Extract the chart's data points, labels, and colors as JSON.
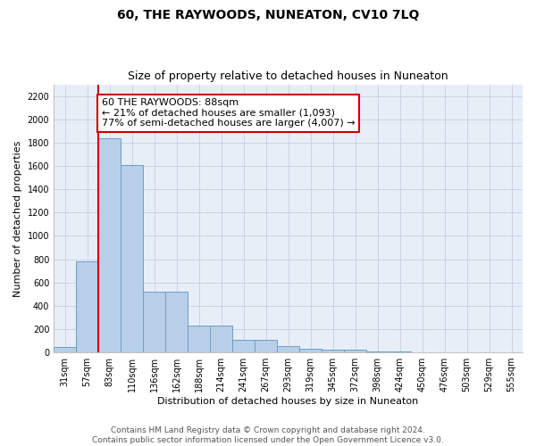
{
  "title": "60, THE RAYWOODS, NUNEATON, CV10 7LQ",
  "subtitle": "Size of property relative to detached houses in Nuneaton",
  "xlabel": "Distribution of detached houses by size in Nuneaton",
  "ylabel": "Number of detached properties",
  "bin_labels": [
    "31sqm",
    "57sqm",
    "83sqm",
    "110sqm",
    "136sqm",
    "162sqm",
    "188sqm",
    "214sqm",
    "241sqm",
    "267sqm",
    "293sqm",
    "319sqm",
    "345sqm",
    "372sqm",
    "398sqm",
    "424sqm",
    "450sqm",
    "476sqm",
    "503sqm",
    "529sqm",
    "555sqm"
  ],
  "bar_heights": [
    50,
    780,
    1840,
    1610,
    520,
    520,
    230,
    230,
    110,
    110,
    55,
    35,
    20,
    20,
    10,
    5,
    2,
    1,
    0,
    0,
    0
  ],
  "bar_color": "#b8cfe8",
  "bar_edge_color": "#6a9fc8",
  "annotation_text": "60 THE RAYWOODS: 88sqm\n← 21% of detached houses are smaller (1,093)\n77% of semi-detached houses are larger (4,007) →",
  "annotation_box_color": "#ffffff",
  "annotation_box_edge_color": "#cc0000",
  "red_line_color": "#cc0000",
  "ylim": [
    0,
    2300
  ],
  "yticks": [
    0,
    200,
    400,
    600,
    800,
    1000,
    1200,
    1400,
    1600,
    1800,
    2000,
    2200
  ],
  "footer_line1": "Contains HM Land Registry data © Crown copyright and database right 2024.",
  "footer_line2": "Contains public sector information licensed under the Open Government Licence v3.0.",
  "background_color": "#ffffff",
  "plot_bg_color": "#e8eef8",
  "grid_color": "#c8d4e4",
  "title_fontsize": 10,
  "subtitle_fontsize": 9,
  "axis_label_fontsize": 8,
  "tick_fontsize": 7,
  "annotation_fontsize": 8,
  "footer_fontsize": 6.5
}
